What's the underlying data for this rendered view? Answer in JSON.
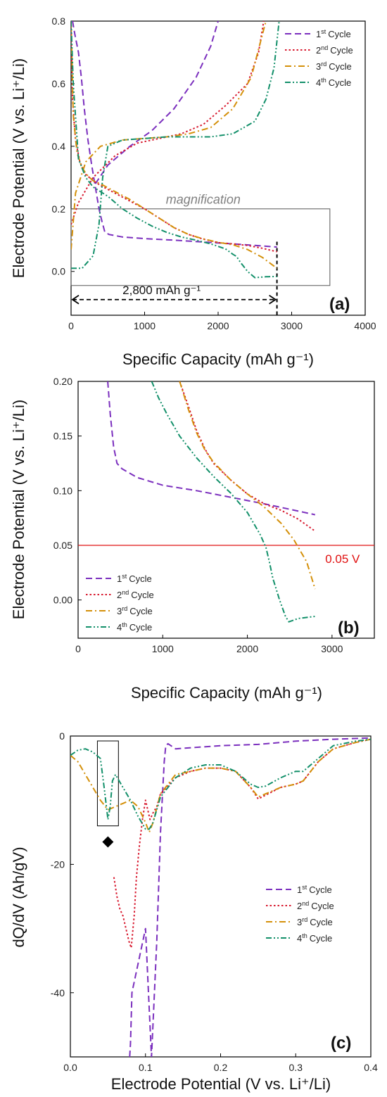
{
  "colors": {
    "cycle1": "#7b2fbe",
    "cycle2": "#d81b30",
    "cycle3": "#d4900a",
    "cycle4": "#13906a",
    "red_line": "#e01010",
    "box": "#555555"
  },
  "chart_data": [
    {
      "panel": "a",
      "type": "line",
      "panel_label": "(a)",
      "xlabel": "Specific Capacity (mAh g⁻¹)",
      "ylabel": "Electrode Potential (V vs. Li⁺/Li)",
      "xlim": [
        0,
        4000
      ],
      "ylim": [
        -0.14,
        0.8
      ],
      "xticks": [
        0,
        1000,
        2000,
        3000,
        4000
      ],
      "yticks": [
        0.0,
        0.2,
        0.4,
        0.6,
        0.8
      ],
      "ytick_labels": [
        "0.0",
        "0.2",
        "0.4",
        "0.6",
        "0.8"
      ],
      "legend_placement": "top-right",
      "annotations": {
        "magnification": "magnification",
        "capacity_label": "2,800 mAh g⁻¹",
        "box_x": [
          0,
          3520
        ],
        "box_y": [
          -0.045,
          0.2
        ],
        "arrow_x": [
          0,
          2800
        ],
        "arrow_y": -0.09,
        "marker_x": 2800
      },
      "series": [
        {
          "name": "1st Cycle",
          "style": "dash",
          "x": [
            20,
            50,
            100,
            140,
            180,
            230,
            280,
            330,
            380,
            420,
            460,
            520,
            700,
            1000,
            1400,
            1800,
            2200,
            2500,
            2800
          ],
          "y": [
            0.8,
            0.76,
            0.7,
            0.62,
            0.52,
            0.42,
            0.34,
            0.27,
            0.2,
            0.16,
            0.125,
            0.118,
            0.11,
            0.105,
            0.1,
            0.094,
            0.088,
            0.083,
            0.078
          ],
          "x_charge": [
            330,
            500,
            800,
            1100,
            1400,
            1700,
            1900,
            2000
          ],
          "y_charge": [
            0.28,
            0.34,
            0.4,
            0.45,
            0.52,
            0.62,
            0.72,
            0.8
          ]
        },
        {
          "name": "2nd Cycle",
          "style": "dot",
          "x": [
            0,
            20,
            60,
            120,
            200,
            300,
            400,
            600,
            800,
            1000,
            1200,
            1400,
            1600,
            1800,
            2000,
            2200,
            2400,
            2600,
            2800
          ],
          "y": [
            0.8,
            0.55,
            0.42,
            0.35,
            0.31,
            0.29,
            0.275,
            0.25,
            0.225,
            0.2,
            0.17,
            0.14,
            0.118,
            0.103,
            0.092,
            0.088,
            0.083,
            0.074,
            0.063
          ],
          "x_charge": [
            0,
            100,
            300,
            600,
            900,
            1200,
            1500,
            1800,
            2100,
            2400,
            2550,
            2620
          ],
          "y_charge": [
            0.15,
            0.22,
            0.3,
            0.37,
            0.41,
            0.425,
            0.44,
            0.47,
            0.53,
            0.6,
            0.7,
            0.8
          ]
        },
        {
          "name": "3rd Cycle",
          "style": "dashdot",
          "x": [
            0,
            30,
            80,
            150,
            230,
            300,
            400,
            600,
            800,
            1000,
            1200,
            1400,
            1600,
            1800,
            2000,
            2200,
            2400,
            2600,
            2800
          ],
          "y": [
            0.8,
            0.5,
            0.38,
            0.33,
            0.305,
            0.29,
            0.28,
            0.255,
            0.23,
            0.2,
            0.17,
            0.14,
            0.118,
            0.104,
            0.093,
            0.085,
            0.07,
            0.045,
            0.01
          ],
          "x_charge": [
            0,
            60,
            200,
            400,
            700,
            1000,
            1300,
            1600,
            1900,
            2200,
            2450,
            2650
          ],
          "y_charge": [
            0.07,
            0.25,
            0.35,
            0.4,
            0.42,
            0.425,
            0.43,
            0.44,
            0.46,
            0.52,
            0.62,
            0.8
          ]
        },
        {
          "name": "4th Cycle",
          "style": "dashdotdot",
          "x": [
            0,
            30,
            100,
            200,
            300,
            500,
            700,
            900,
            1100,
            1300,
            1500,
            1700,
            1900,
            2100,
            2200,
            2250,
            2300,
            2400,
            2500,
            2650,
            2800
          ],
          "y": [
            0.8,
            0.6,
            0.36,
            0.3,
            0.27,
            0.24,
            0.2,
            0.17,
            0.145,
            0.125,
            0.11,
            0.1,
            0.088,
            0.072,
            0.055,
            0.048,
            0.03,
            0.0,
            -0.02,
            -0.017,
            -0.016
          ],
          "x_charge": [
            0,
            150,
            300,
            380,
            430,
            500,
            700,
            1000,
            1300,
            1600,
            1900,
            2200,
            2500,
            2650,
            2760,
            2830
          ],
          "y_charge": [
            0.01,
            0.01,
            0.05,
            0.15,
            0.3,
            0.4,
            0.42,
            0.425,
            0.43,
            0.43,
            0.43,
            0.44,
            0.48,
            0.55,
            0.65,
            0.8
          ]
        }
      ]
    },
    {
      "panel": "b",
      "type": "line",
      "panel_label": "(b)",
      "xlabel": "Specific Capacity (mAh g⁻¹)",
      "ylabel": "Electrode Potential (V vs. Li⁺/Li)",
      "xlim": [
        0,
        3500
      ],
      "ylim": [
        -0.035,
        0.2
      ],
      "xticks": [
        0,
        1000,
        2000,
        3000
      ],
      "yticks": [
        0.0,
        0.05,
        0.1,
        0.15,
        0.2
      ],
      "ytick_labels": [
        "0.00",
        "0.05",
        "0.10",
        "0.15",
        "0.20"
      ],
      "legend_placement": "bottom-left",
      "hline": {
        "y": 0.05,
        "label": "0.05 V"
      },
      "series": [
        {
          "name": "1st Cycle",
          "style": "dash",
          "x": [
            350,
            380,
            420,
            460,
            520,
            700,
            1000,
            1400,
            1800,
            2200,
            2500,
            2800
          ],
          "y": [
            0.2,
            0.17,
            0.14,
            0.125,
            0.12,
            0.112,
            0.105,
            0.1,
            0.094,
            0.088,
            0.083,
            0.078
          ]
        },
        {
          "name": "2nd Cycle",
          "style": "dot",
          "x": [
            1200,
            1300,
            1400,
            1500,
            1600,
            1800,
            2000,
            2200,
            2400,
            2600,
            2800
          ],
          "y": [
            0.2,
            0.178,
            0.155,
            0.138,
            0.125,
            0.11,
            0.097,
            0.088,
            0.082,
            0.074,
            0.063
          ]
        },
        {
          "name": "3rd Cycle",
          "style": "dashdot",
          "x": [
            1200,
            1300,
            1400,
            1500,
            1600,
            1800,
            2000,
            2200,
            2400,
            2550,
            2700,
            2800
          ],
          "y": [
            0.2,
            0.175,
            0.153,
            0.137,
            0.126,
            0.11,
            0.097,
            0.085,
            0.07,
            0.055,
            0.035,
            0.01
          ]
        },
        {
          "name": "4th Cycle",
          "style": "dashdotdot",
          "x": [
            870,
            950,
            1050,
            1200,
            1400,
            1600,
            1800,
            2000,
            2150,
            2220,
            2260,
            2300,
            2380,
            2450,
            2490,
            2600,
            2800
          ],
          "y": [
            0.2,
            0.185,
            0.17,
            0.15,
            0.13,
            0.113,
            0.098,
            0.08,
            0.06,
            0.048,
            0.035,
            0.02,
            0.0,
            -0.015,
            -0.02,
            -0.017,
            -0.015
          ]
        }
      ]
    },
    {
      "panel": "c",
      "type": "line",
      "panel_label": "(c)",
      "xlabel": "Electrode Potential (V vs. Li⁺/Li)",
      "ylabel": "dQ/dV (Ah/gV)",
      "xlim": [
        0.0,
        0.4
      ],
      "ylim": [
        -50,
        0
      ],
      "xticks": [
        0.0,
        0.1,
        0.2,
        0.3,
        0.4
      ],
      "xtick_labels": [
        "0.0",
        "0.1",
        "0.2",
        "0.3",
        "0.4"
      ],
      "yticks": [
        -40,
        -20,
        0
      ],
      "legend_placement": "middle-right",
      "annotations": {
        "box_x": [
          0.036,
          0.064
        ],
        "box_y": [
          -14,
          0
        ],
        "diamond": [
          0.05,
          -16.5
        ]
      },
      "series": [
        {
          "name": "1st Cycle",
          "style": "dash",
          "x": [
            0.079,
            0.08,
            0.081,
            0.082,
            0.1,
            0.104,
            0.108,
            0.11,
            0.115,
            0.12,
            0.125,
            0.127,
            0.13,
            0.14,
            0.2,
            0.25,
            0.3,
            0.35,
            0.4
          ],
          "y": [
            -50,
            -48,
            -44,
            -40,
            -30,
            -40,
            -50,
            -45,
            -32,
            -15,
            -4,
            -1.5,
            -1.2,
            -2,
            -1.5,
            -1.3,
            -0.8,
            -0.5,
            -0.3
          ]
        },
        {
          "name": "2nd Cycle",
          "style": "dot",
          "x": [
            0.058,
            0.062,
            0.066,
            0.07,
            0.074,
            0.078,
            0.081,
            0.085,
            0.088,
            0.092,
            0.096,
            0.1,
            0.102,
            0.106,
            0.11,
            0.115,
            0.12,
            0.14,
            0.16,
            0.18,
            0.2,
            0.22,
            0.24,
            0.25,
            0.26,
            0.28,
            0.3,
            0.31,
            0.33,
            0.35,
            0.38,
            0.4
          ],
          "y": [
            -22,
            -25,
            -27,
            -28,
            -30,
            -32,
            -33,
            -28,
            -22,
            -17,
            -13,
            -10,
            -11,
            -13,
            -12,
            -11,
            -9,
            -6.5,
            -5.5,
            -5,
            -5,
            -5.5,
            -8,
            -9.8,
            -9.2,
            -8,
            -7.5,
            -7,
            -4,
            -2,
            -1,
            -0.5
          ]
        },
        {
          "name": "3rd Cycle",
          "style": "dashdot",
          "x": [
            0.0,
            0.01,
            0.02,
            0.03,
            0.04,
            0.05,
            0.06,
            0.07,
            0.08,
            0.09,
            0.1,
            0.105,
            0.11,
            0.12,
            0.14,
            0.16,
            0.18,
            0.2,
            0.22,
            0.24,
            0.25,
            0.26,
            0.28,
            0.3,
            0.31,
            0.33,
            0.35,
            0.38,
            0.4
          ],
          "y": [
            -3,
            -4,
            -6,
            -8,
            -10,
            -11.5,
            -11,
            -10.5,
            -10,
            -11,
            -13.5,
            -15,
            -13.5,
            -9,
            -6,
            -5.5,
            -5,
            -5,
            -5.5,
            -8,
            -9.5,
            -9,
            -8,
            -7.5,
            -7,
            -4,
            -2,
            -1,
            -0.5
          ]
        },
        {
          "name": "4th Cycle",
          "style": "dashdotdot",
          "x": [
            0.0,
            0.01,
            0.02,
            0.03,
            0.04,
            0.045,
            0.05,
            0.053,
            0.056,
            0.06,
            0.07,
            0.08,
            0.09,
            0.1,
            0.105,
            0.11,
            0.12,
            0.14,
            0.16,
            0.18,
            0.2,
            0.22,
            0.24,
            0.25,
            0.26,
            0.28,
            0.3,
            0.31,
            0.33,
            0.35,
            0.38,
            0.4
          ],
          "y": [
            -3,
            -2.2,
            -2,
            -2.5,
            -3.5,
            -8,
            -13,
            -11,
            -7,
            -6,
            -8,
            -10,
            -12.5,
            -14.5,
            -14.5,
            -13.5,
            -9.5,
            -6.5,
            -5,
            -4.5,
            -4.5,
            -5.5,
            -7.5,
            -8,
            -7.8,
            -6.5,
            -5.5,
            -5.5,
            -3.5,
            -1.5,
            -0.8,
            -0.5
          ]
        }
      ]
    }
  ]
}
